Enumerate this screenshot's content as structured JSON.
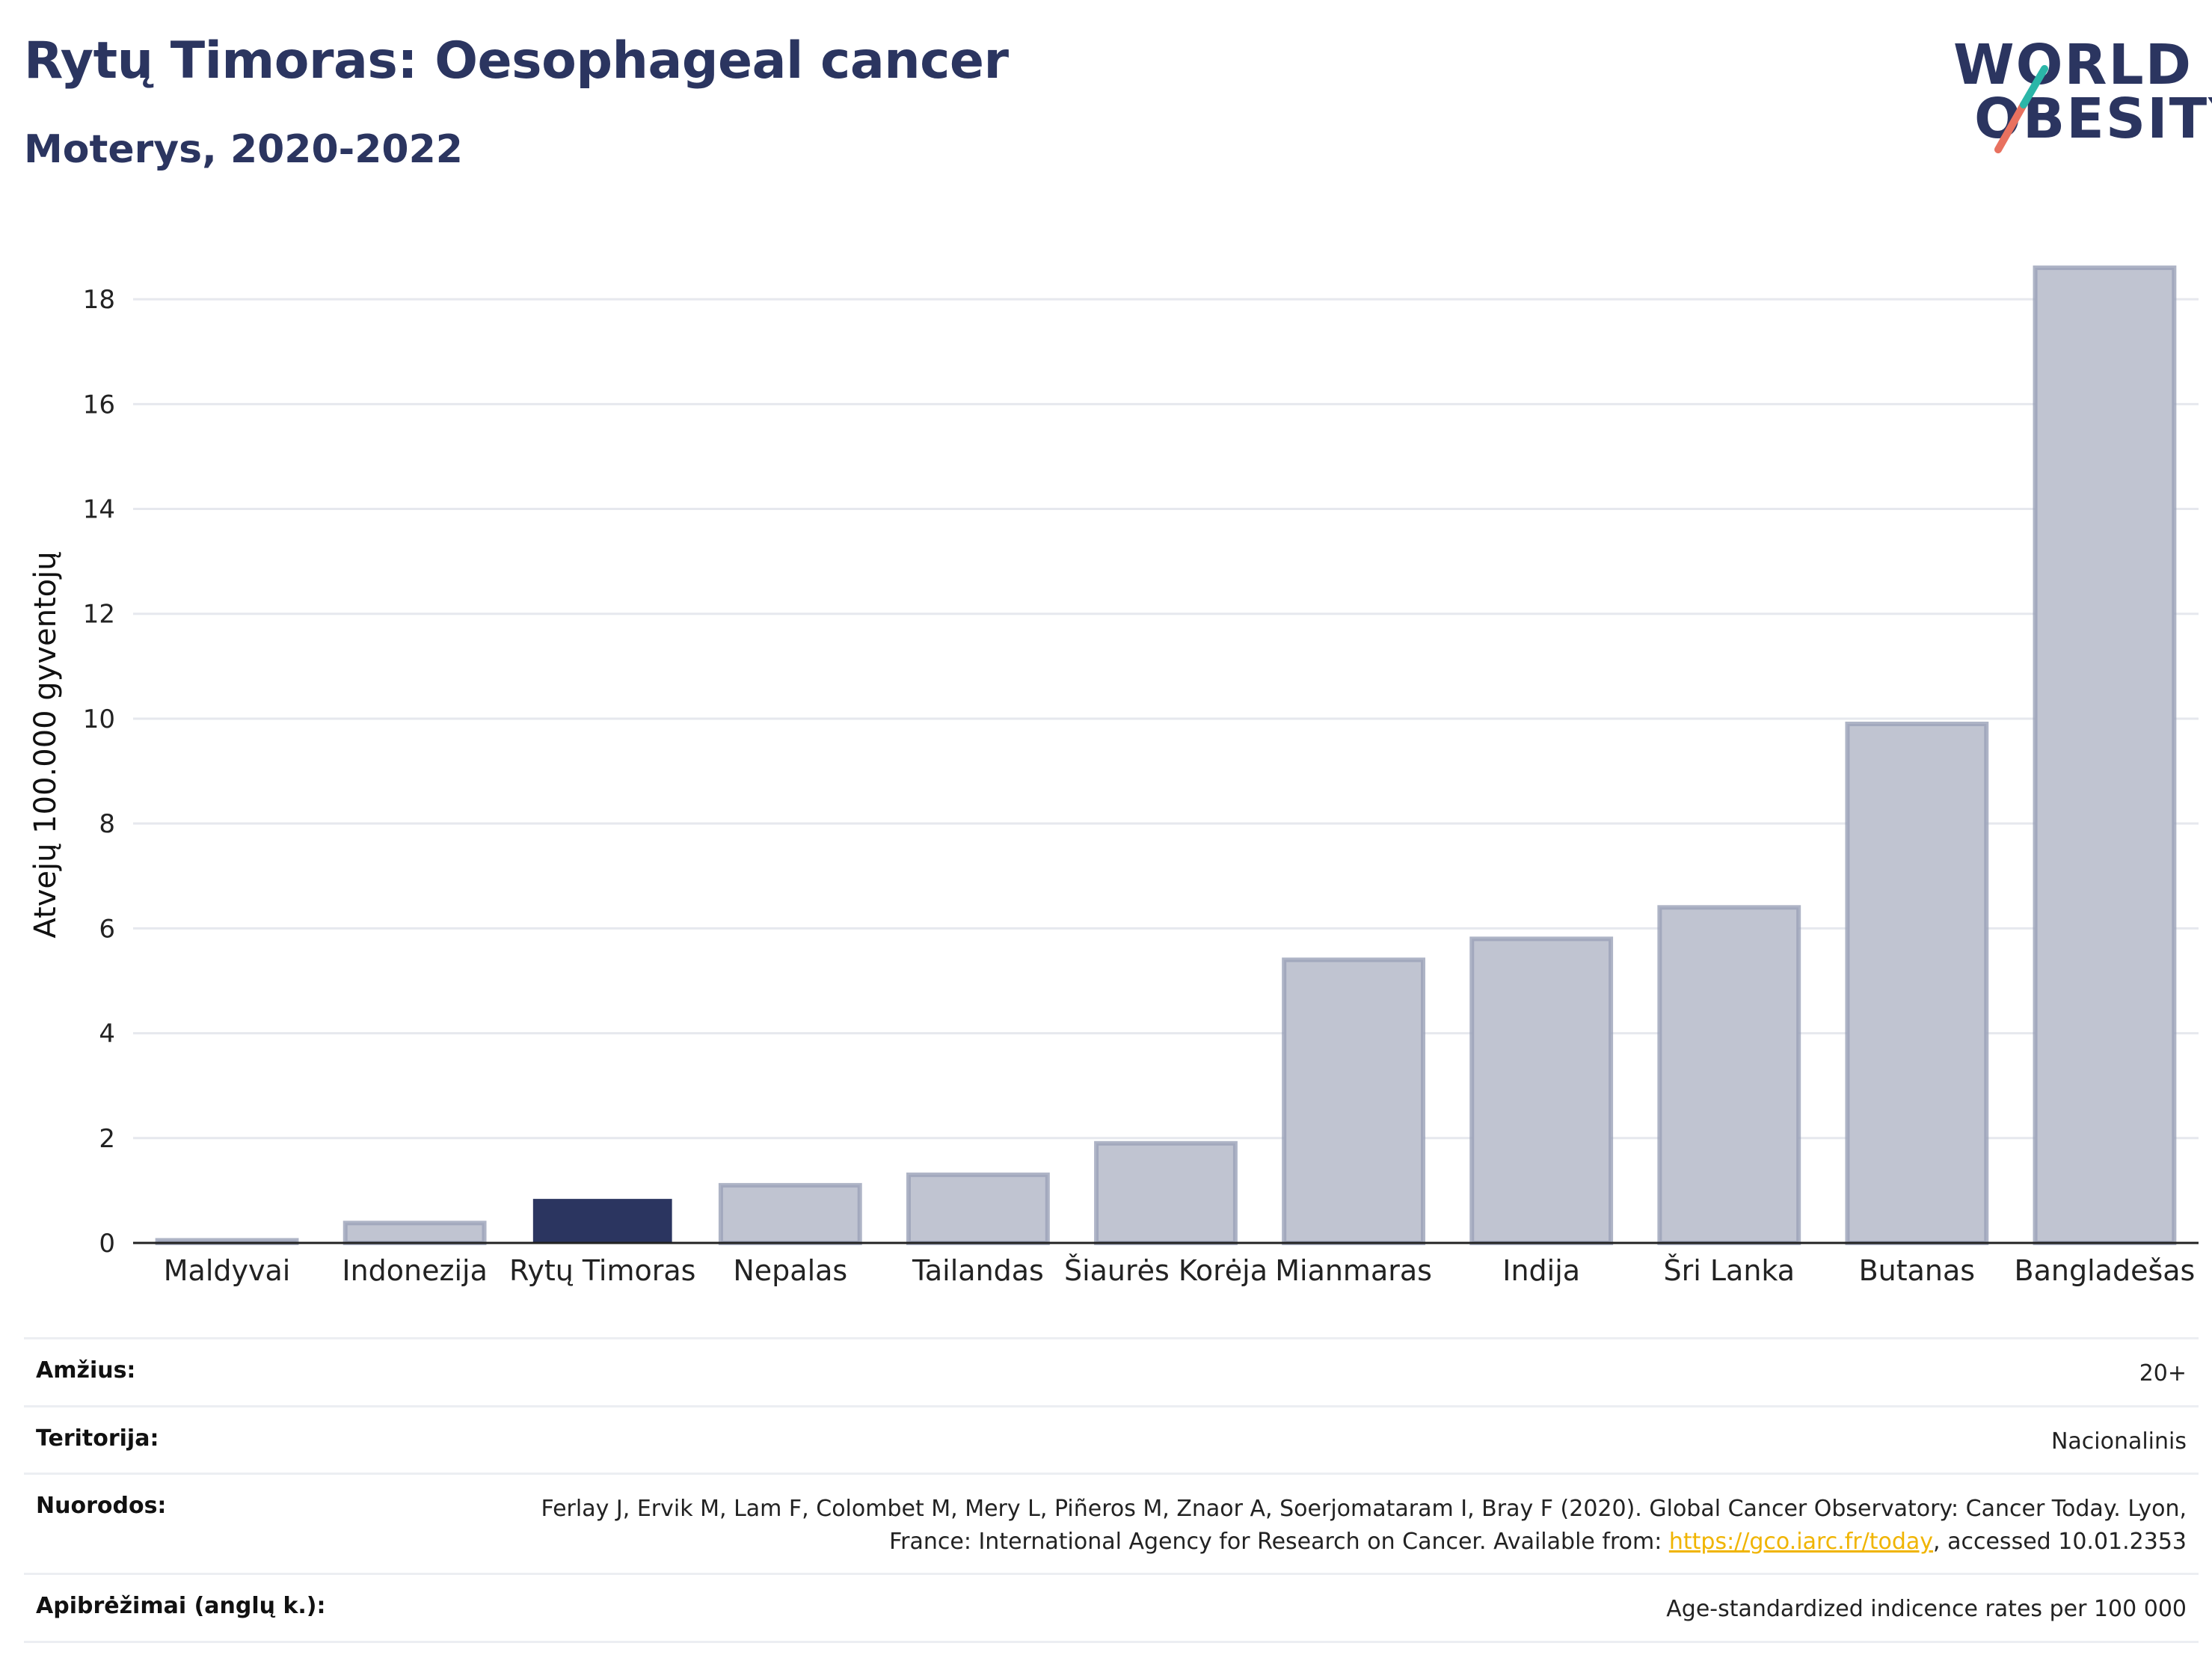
{
  "title": "Rytų Timoras: Oesophageal cancer",
  "subtitle": "Moterys, 2020-2022",
  "logo": {
    "line1": "WORLD",
    "line2": "OBESITY"
  },
  "colors": {
    "highlight": "#2b3560",
    "bar": "#c0c4d1",
    "bar_edge": "#9aa1b8",
    "title": "#2b3560",
    "link": "#f0b400"
  },
  "chart_data": {
    "type": "bar",
    "ylabel": "Atvejų 100.000 gyventojų",
    "xlabel": "",
    "ylim": [
      0,
      19
    ],
    "yticks": [
      0,
      2,
      4,
      6,
      8,
      10,
      12,
      14,
      16,
      18
    ],
    "grid": true,
    "highlight": "Rytų Timoras",
    "categories": [
      "Maldyvai",
      "Indonezija",
      "Rytų Timoras",
      "Nepalas",
      "Tailandas",
      "Šiaurės Korėja",
      "Mianmaras",
      "Indija",
      "Šri Lanka",
      "Butanas",
      "Bangladešas"
    ],
    "values": [
      0.05,
      0.38,
      0.84,
      1.1,
      1.3,
      1.9,
      5.4,
      5.8,
      6.4,
      9.9,
      18.6
    ]
  },
  "meta": {
    "age_label": "Amžius:",
    "age_value": "20+",
    "territory_label": "Teritorija:",
    "territory_value": "Nacionalinis",
    "refs_label": "Nuorodos:",
    "refs_text_1": "Ferlay J, Ervik M, Lam F, Colombet M, Mery L, Piñeros M, Znaor A, Soerjomataram I, Bray F (2020). Global Cancer Observatory: Cancer Today. Lyon, France: International Agency for Research on Cancer. Available from: ",
    "refs_link": "https://gco.iarc.fr/today",
    "refs_text_2": ", accessed 10.01.2353",
    "defs_label": "Apibrėžimai (anglų k.):",
    "defs_value": "Age-standardized indicence rates per 100 000"
  }
}
